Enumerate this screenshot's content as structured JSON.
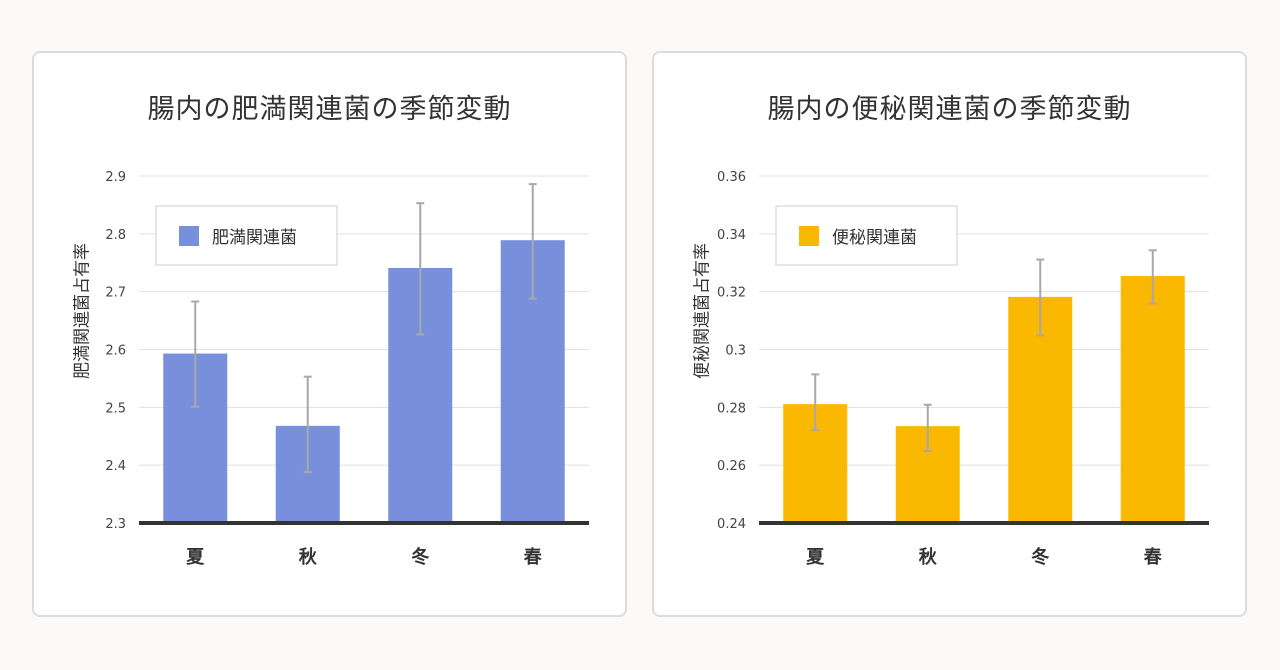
{
  "chart_data": [
    {
      "type": "bar",
      "title": "腸内の肥満関連菌の季節変動",
      "xlabel": "",
      "ylabel": "肥満関連菌占有率",
      "categories": [
        "夏",
        "秋",
        "冬",
        "春"
      ],
      "series": [
        {
          "name": "肥満関連菌",
          "values": [
            2.593,
            2.468,
            2.741,
            2.789
          ],
          "error_low": [
            2.501,
            2.388,
            2.626,
            2.688
          ],
          "error_high": [
            2.683,
            2.553,
            2.853,
            2.886
          ]
        }
      ],
      "ylim": [
        2.3,
        2.9
      ],
      "yticks": [
        2.3,
        2.4,
        2.5,
        2.6,
        2.7,
        2.8,
        2.9
      ],
      "ytick_labels": [
        "2.3",
        "2.4",
        "2.5",
        "2.6",
        "2.7",
        "2.8",
        "2.9"
      ],
      "color": "#7890db",
      "grid": true,
      "legend_position": "top-left"
    },
    {
      "type": "bar",
      "title": "腸内の便秘関連菌の季節変動",
      "xlabel": "",
      "ylabel": "便秘関連菌占有率",
      "categories": [
        "夏",
        "秋",
        "冬",
        "春"
      ],
      "series": [
        {
          "name": "便秘関連菌",
          "values": [
            0.2811,
            0.2735,
            0.3182,
            0.3254
          ],
          "error_low": [
            0.2721,
            0.2649,
            0.3049,
            0.3159
          ],
          "error_high": [
            0.2914,
            0.2809,
            0.3311,
            0.3343
          ]
        }
      ],
      "ylim": [
        0.24,
        0.36
      ],
      "yticks": [
        0.24,
        0.26,
        0.28,
        0.3,
        0.32,
        0.34,
        0.36
      ],
      "ytick_labels": [
        "0.24",
        "0.26",
        "0.28",
        "0.3",
        "0.32",
        "0.34",
        "0.36"
      ],
      "color": "#fbb800",
      "grid": true,
      "legend_position": "top-left"
    }
  ]
}
